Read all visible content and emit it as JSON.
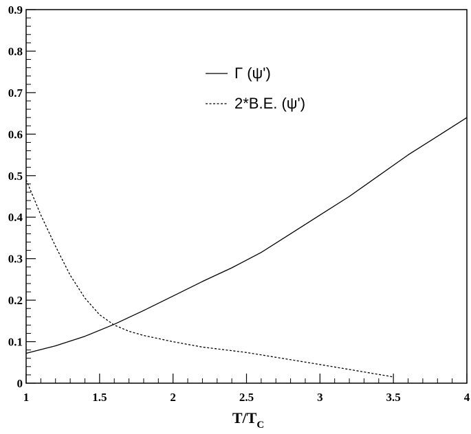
{
  "chart_data": {
    "type": "line",
    "xlabel": "T/T",
    "xlabel_sub": "C",
    "ylabel": "",
    "xlim": [
      1,
      4
    ],
    "ylim": [
      0,
      0.9
    ],
    "xticks": [
      1,
      1.5,
      2,
      2.5,
      3,
      3.5,
      4
    ],
    "xtick_labels": [
      "1",
      "1.5",
      "2",
      "2.5",
      "3",
      "3.5",
      "4"
    ],
    "yticks": [
      0,
      0.1,
      0.2,
      0.3,
      0.4,
      0.5,
      0.6,
      0.7,
      0.8,
      0.9
    ],
    "ytick_labels": [
      "0",
      "0.1",
      "0.2",
      "0.3",
      "0.4",
      "0.5",
      "0.6",
      "0.7",
      "0.8",
      "0.9"
    ],
    "grid": false,
    "legend_position": "top-center",
    "series": [
      {
        "name": "Γ (ψ')",
        "style": "solid",
        "color": "#000000",
        "x": [
          1.0,
          1.2,
          1.4,
          1.6,
          1.8,
          2.0,
          2.2,
          2.4,
          2.6,
          2.8,
          3.0,
          3.2,
          3.4,
          3.6,
          3.8,
          4.0
        ],
        "y": [
          0.072,
          0.09,
          0.113,
          0.142,
          0.175,
          0.21,
          0.245,
          0.278,
          0.315,
          0.36,
          0.405,
          0.45,
          0.5,
          0.55,
          0.595,
          0.64
        ]
      },
      {
        "name": "2*B.E. (ψ')",
        "style": "dashed",
        "color": "#000000",
        "x": [
          1.0,
          1.1,
          1.2,
          1.3,
          1.4,
          1.5,
          1.6,
          1.7,
          1.8,
          2.0,
          2.2,
          2.5,
          3.0,
          3.5
        ],
        "y": [
          0.49,
          0.405,
          0.33,
          0.26,
          0.205,
          0.165,
          0.14,
          0.125,
          0.115,
          0.1,
          0.087,
          0.074,
          0.045,
          0.015
        ]
      }
    ]
  }
}
